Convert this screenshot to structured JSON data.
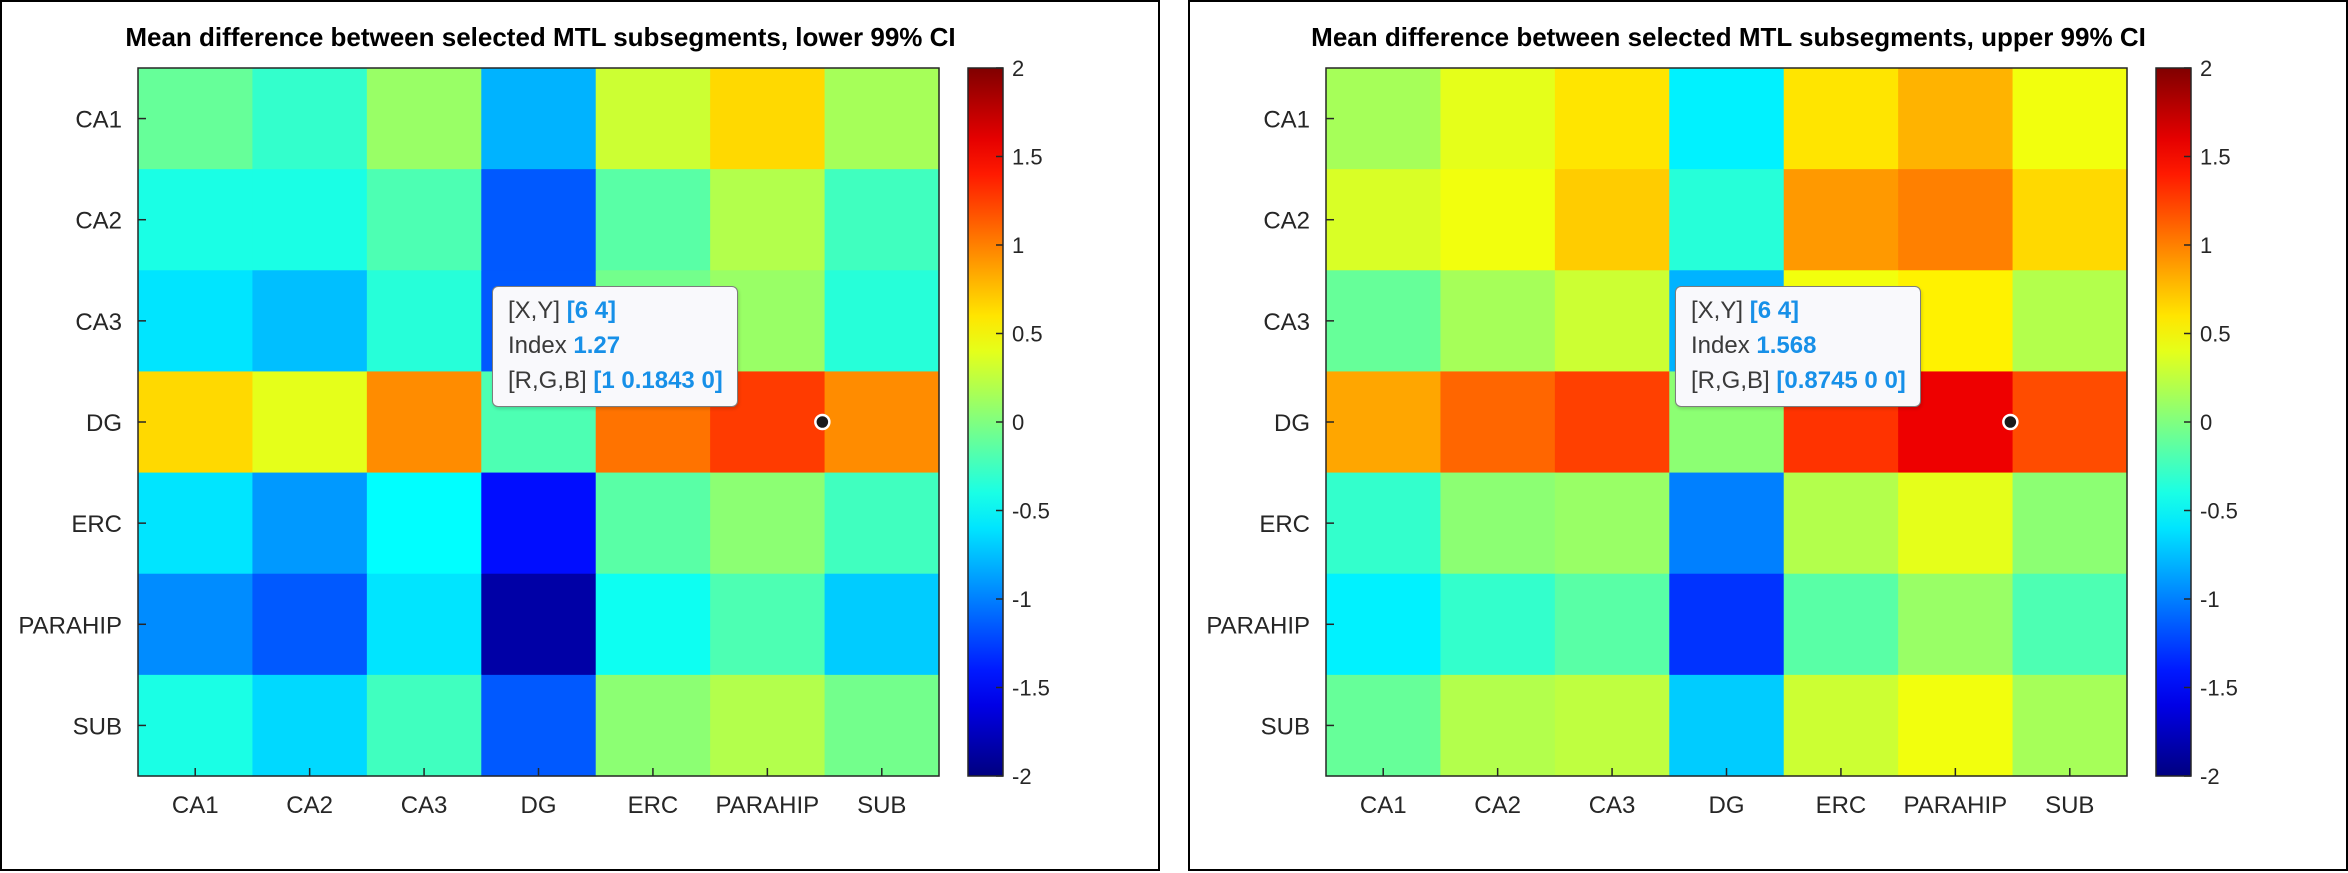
{
  "chart_data": [
    {
      "type": "heatmap",
      "title": "Mean difference between selected MTL subsegments, lower 99% CI",
      "xlabel": "",
      "ylabel": "",
      "x_categories": [
        "CA1",
        "CA2",
        "CA3",
        "DG",
        "ERC",
        "PARAHIP",
        "SUB"
      ],
      "y_categories": [
        "CA1",
        "CA2",
        "CA3",
        "DG",
        "ERC",
        "PARAHIP",
        "SUB"
      ],
      "values": [
        [
          -0.1,
          -0.3,
          0.1,
          -0.8,
          0.3,
          0.65,
          0.15
        ],
        [
          -0.4,
          -0.4,
          -0.2,
          -1.15,
          -0.15,
          0.2,
          -0.25
        ],
        [
          -0.6,
          -0.75,
          -0.35,
          -1.15,
          -0.05,
          0.1,
          -0.35
        ],
        [
          0.65,
          0.4,
          0.95,
          -0.2,
          1.05,
          1.27,
          0.95
        ],
        [
          -0.6,
          -0.9,
          -0.5,
          -1.45,
          -0.15,
          0.05,
          -0.25
        ],
        [
          -0.95,
          -1.15,
          -0.6,
          -1.85,
          -0.45,
          -0.2,
          -0.7
        ],
        [
          -0.4,
          -0.65,
          -0.25,
          -1.15,
          0.05,
          0.2,
          -0.05
        ]
      ],
      "colorbar": {
        "min": -2,
        "max": 2,
        "ticks": [
          "2",
          "1.5",
          "1",
          "0.5",
          "0",
          "-0.5",
          "-1",
          "-1.5",
          "-2"
        ]
      },
      "colormap": "jet",
      "grid": false,
      "datatip": {
        "cell": [
          6,
          4
        ],
        "xy_label": "[X,Y]",
        "xy_value": "[6 4]",
        "index_label": "Index",
        "index_value": "1.27",
        "rgb_label": "[R,G,B]",
        "rgb_value": "[1 0.1843 0]"
      }
    },
    {
      "type": "heatmap",
      "title": "Mean difference between selected MTL subsegments, upper 99% CI",
      "xlabel": "",
      "ylabel": "",
      "x_categories": [
        "CA1",
        "CA2",
        "CA3",
        "DG",
        "ERC",
        "PARAHIP",
        "SUB"
      ],
      "y_categories": [
        "CA1",
        "CA2",
        "CA3",
        "DG",
        "ERC",
        "PARAHIP",
        "SUB"
      ],
      "values": [
        [
          0.15,
          0.4,
          0.6,
          -0.55,
          0.6,
          0.8,
          0.45
        ],
        [
          0.35,
          0.45,
          0.7,
          -0.35,
          0.9,
          1.0,
          0.65
        ],
        [
          -0.1,
          0.15,
          0.3,
          -0.8,
          0.45,
          0.55,
          0.2
        ],
        [
          0.85,
          1.1,
          1.25,
          0.05,
          1.3,
          1.568,
          1.2
        ],
        [
          -0.3,
          0.05,
          0.1,
          -1.0,
          0.2,
          0.4,
          0.05
        ],
        [
          -0.55,
          -0.3,
          -0.15,
          -1.3,
          -0.15,
          0.1,
          -0.2
        ],
        [
          -0.1,
          0.2,
          0.25,
          -0.7,
          0.3,
          0.45,
          0.15
        ]
      ],
      "colorbar": {
        "min": -2,
        "max": 2,
        "ticks": [
          "2",
          "1.5",
          "1",
          "0.5",
          "0",
          "-0.5",
          "-1",
          "-1.5",
          "-2"
        ]
      },
      "colormap": "jet",
      "grid": false,
      "datatip": {
        "cell": [
          6,
          4
        ],
        "xy_label": "[X,Y]",
        "xy_value": "[6 4]",
        "index_label": "Index",
        "index_value": "1.568",
        "rgb_label": "[R,G,B]",
        "rgb_value": "[0.8745 0 0]"
      }
    }
  ]
}
